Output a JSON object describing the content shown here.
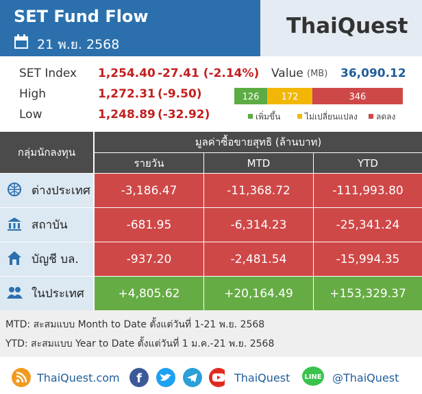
{
  "header": {
    "title": "SET Fund Flow",
    "date": "21 พ.ย. 2568",
    "logo": "ThaiQuest"
  },
  "summary": {
    "rows": [
      {
        "label": "SET Index",
        "value": "1,254.40",
        "change": "-27.41 (-2.14%)"
      },
      {
        "label": "High",
        "value": "1,272.31",
        "change": "(-9.50)"
      },
      {
        "label": "Low",
        "value": "1,248.89",
        "change": "(-32.92)"
      }
    ],
    "turnover_label": "Value",
    "turnover_unit": "(MB)",
    "turnover": "36,090.12"
  },
  "breadth": [
    {
      "label": "เพิ่มขึ้น",
      "value": 126,
      "color": "#5cac43"
    },
    {
      "label": "ไม่เปลี่ยนแปลง",
      "value": 172,
      "color": "#f2b705"
    },
    {
      "label": "ลดลง",
      "value": 346,
      "color": "#cf4848"
    }
  ],
  "table": {
    "corner": "กลุ่มนักลงทุน",
    "group_header": "มูลค่าซื้อขายสุทธิ (ล้านบาท)",
    "columns": [
      "รายวัน",
      "MTD",
      "YTD"
    ],
    "rows": [
      {
        "label": "ต่างประเทศ",
        "values": [
          "-3,186.47",
          "-11,368.72",
          "-111,993.80"
        ],
        "color": "#cf4848"
      },
      {
        "label": "สถาบัน",
        "values": [
          "-681.95",
          "-6,314.23",
          "-25,341.24"
        ],
        "color": "#cf4848"
      },
      {
        "label": "บัญชี บล.",
        "values": [
          "-937.20",
          "-2,481.54",
          "-15,994.35"
        ],
        "color": "#cf4848"
      },
      {
        "label": "ในประเทศ",
        "values": [
          "+4,805.62",
          "+20,164.49",
          "+153,329.37"
        ],
        "color": "#66ac45"
      }
    ]
  },
  "notes": [
    "MTD: สะสมแบบ Month to Date ตั้งแต่วันที่ 1-21 พ.ย. 2568",
    "YTD: สะสมแบบ Year to Date ตั้งแต่วันที่ 1 ม.ค.-21 พ.ย. 2568"
  ],
  "footer": {
    "website": "ThaiQuest.com",
    "facebook": "ThaiQuest",
    "line": "@ThaiQuest",
    "line_badge": "LINE"
  }
}
